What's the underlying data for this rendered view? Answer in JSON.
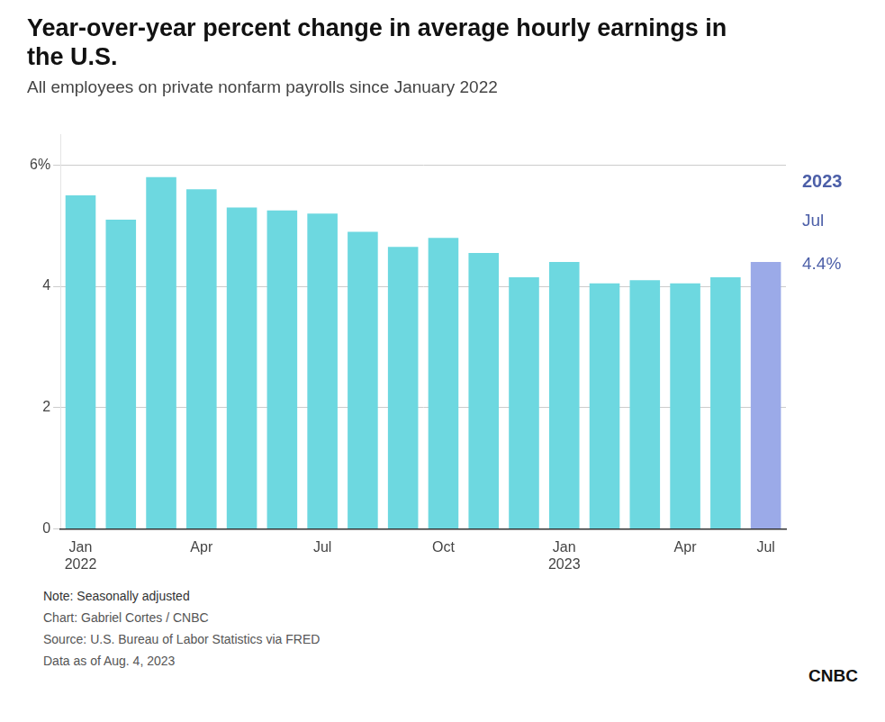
{
  "chart_data": {
    "type": "bar",
    "title": [
      "Year-over-year percent change in average hourly earnings in",
      "the U.S."
    ],
    "subtitle": "All employees on private nonfarm payrolls since January 2022",
    "categories": [
      "Jan\n2022",
      null,
      null,
      "Apr",
      null,
      null,
      "Jul",
      null,
      null,
      "Oct",
      null,
      null,
      "Jan\n2023",
      null,
      null,
      "Apr",
      null,
      "Jul"
    ],
    "values": [
      5.5,
      5.1,
      5.8,
      5.6,
      5.3,
      5.25,
      5.2,
      4.9,
      4.65,
      4.8,
      4.55,
      4.15,
      4.4,
      4.05,
      4.1,
      4.05,
      4.15,
      4.4
    ],
    "colors": [
      "#6DD8E0",
      "#6DD8E0",
      "#6DD8E0",
      "#6DD8E0",
      "#6DD8E0",
      "#6DD8E0",
      "#6DD8E0",
      "#6DD8E0",
      "#6DD8E0",
      "#6DD8E0",
      "#6DD8E0",
      "#6DD8E0",
      "#6DD8E0",
      "#6DD8E0",
      "#6DD8E0",
      "#6DD8E0",
      "#6DD8E0",
      "#9BAAE8"
    ],
    "ylim": [
      0,
      6.5
    ],
    "yticks": [
      0,
      2,
      4,
      {
        "value": 6,
        "label": "6%"
      }
    ],
    "grid": true,
    "annotations": [
      "2023",
      "Jul",
      "4.4%"
    ],
    "notes": [
      "Note: Seasonally adjusted",
      "Chart: Gabriel Cortes / CNBC",
      "Source: U.S. Bureau of Labor Statistics via FRED",
      "Data as of Aug. 4, 2023",
      "CNBC"
    ]
  }
}
